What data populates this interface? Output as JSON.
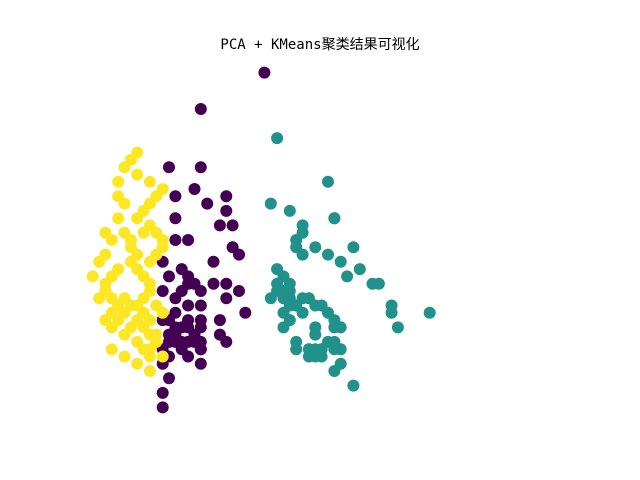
{
  "chart_data": {
    "type": "scatter",
    "title": "PCA + KMeans聚类结果可视化",
    "xlabel": "",
    "ylabel": "",
    "axes_visible": false,
    "grid": false,
    "legend": "none",
    "xlim": [
      -2.9,
      4.9
    ],
    "ylim": [
      -2.3,
      2.7
    ],
    "series": [
      {
        "color": "#440154",
        "points": [
          [
            0.0,
            2.5
          ],
          [
            -1.0,
            2.0
          ],
          [
            -1.5,
            1.2
          ],
          [
            -1.0,
            1.2
          ],
          [
            -1.1,
            0.9
          ],
          [
            -1.4,
            0.8
          ],
          [
            -0.9,
            0.7
          ],
          [
            -0.6,
            0.8
          ],
          [
            -0.6,
            0.6
          ],
          [
            -1.4,
            0.5
          ],
          [
            -0.7,
            0.4
          ],
          [
            -0.5,
            0.4
          ],
          [
            -1.2,
            0.2
          ],
          [
            -1.4,
            0.2
          ],
          [
            -0.5,
            0.1
          ],
          [
            -0.4,
            0.0
          ],
          [
            -0.8,
            -0.1
          ],
          [
            -1.6,
            -0.1
          ],
          [
            -1.3,
            -0.2
          ],
          [
            -1.2,
            -0.3
          ],
          [
            -1.5,
            -0.3
          ],
          [
            -1.1,
            -0.4
          ],
          [
            -0.8,
            -0.4
          ],
          [
            -1.2,
            -0.4
          ],
          [
            -0.6,
            -0.4
          ],
          [
            -0.4,
            -0.5
          ],
          [
            -1.6,
            -0.5
          ],
          [
            -1.3,
            -0.5
          ],
          [
            -1.0,
            -0.5
          ],
          [
            -0.6,
            -0.6
          ],
          [
            -1.4,
            -0.6
          ],
          [
            -1.2,
            -0.7
          ],
          [
            -1.0,
            -0.7
          ],
          [
            -1.4,
            -0.8
          ],
          [
            -0.3,
            -0.8
          ],
          [
            -1.2,
            -0.9
          ],
          [
            -1.5,
            -0.9
          ],
          [
            -1.6,
            -0.9
          ],
          [
            -1.0,
            -0.9
          ],
          [
            -0.7,
            -0.9
          ],
          [
            -1.2,
            -1.0
          ],
          [
            -1.0,
            -1.0
          ],
          [
            -1.4,
            -1.0
          ],
          [
            -1.1,
            -1.1
          ],
          [
            -0.7,
            -1.1
          ],
          [
            -1.4,
            -1.1
          ],
          [
            -1.3,
            -1.0
          ],
          [
            -1.5,
            -1.1
          ],
          [
            -1.2,
            -1.2
          ],
          [
            -1.0,
            -1.2
          ],
          [
            -0.6,
            -1.2
          ],
          [
            -1.4,
            -1.2
          ],
          [
            -1.3,
            -1.2
          ],
          [
            -1.5,
            -1.2
          ],
          [
            -1.1,
            -1.2
          ],
          [
            -1.0,
            -1.3
          ],
          [
            -1.3,
            -1.3
          ],
          [
            -1.5,
            -1.4
          ],
          [
            -1.2,
            -1.4
          ],
          [
            -1.5,
            -1.7
          ],
          [
            -1.0,
            -1.3
          ],
          [
            -1.6,
            -1.3
          ],
          [
            -1.6,
            -1.5
          ],
          [
            -1.0,
            -1.5
          ],
          [
            -1.6,
            -1.9
          ],
          [
            -1.6,
            -2.1
          ]
        ]
      },
      {
        "color": "#21918c",
        "points": [
          [
            0.2,
            1.6
          ],
          [
            1.0,
            1.0
          ],
          [
            0.1,
            0.7
          ],
          [
            0.4,
            0.6
          ],
          [
            0.6,
            0.4
          ],
          [
            0.6,
            0.3
          ],
          [
            0.5,
            0.2
          ],
          [
            0.5,
            0.1
          ],
          [
            1.1,
            0.5
          ],
          [
            1.1,
            0.5
          ],
          [
            0.6,
            0.0
          ],
          [
            1.0,
            0.0
          ],
          [
            0.8,
            0.1
          ],
          [
            1.2,
            -0.1
          ],
          [
            1.4,
            0.1
          ],
          [
            0.2,
            -0.2
          ],
          [
            0.3,
            -0.3
          ],
          [
            0.4,
            -0.4
          ],
          [
            0.2,
            -0.4
          ],
          [
            0.2,
            -0.5
          ],
          [
            0.3,
            -0.5
          ],
          [
            0.3,
            -0.6
          ],
          [
            0.4,
            -0.5
          ],
          [
            0.4,
            -0.6
          ],
          [
            0.4,
            -0.7
          ],
          [
            0.6,
            -0.6
          ],
          [
            0.7,
            -0.6
          ],
          [
            0.5,
            -0.7
          ],
          [
            0.3,
            -0.8
          ],
          [
            0.1,
            -0.6
          ],
          [
            0.9,
            -0.7
          ],
          [
            0.8,
            -0.7
          ],
          [
            0.6,
            -0.8
          ],
          [
            0.4,
            -0.9
          ],
          [
            0.3,
            -1.0
          ],
          [
            1.0,
            -0.8
          ],
          [
            1.1,
            -0.9
          ],
          [
            0.8,
            -1.0
          ],
          [
            1.1,
            -1.0
          ],
          [
            0.5,
            -1.2
          ],
          [
            1.0,
            -1.2
          ],
          [
            0.8,
            -1.1
          ],
          [
            1.1,
            -1.2
          ],
          [
            1.1,
            -1.3
          ],
          [
            1.2,
            -1.3
          ],
          [
            0.9,
            -1.3
          ],
          [
            0.7,
            -1.3
          ],
          [
            0.9,
            -1.4
          ],
          [
            1.7,
            -0.4
          ],
          [
            1.8,
            -0.4
          ],
          [
            2.0,
            -0.7
          ],
          [
            2.0,
            -0.8
          ],
          [
            2.1,
            -1.0
          ],
          [
            2.6,
            -0.8
          ],
          [
            1.3,
            -0.3
          ],
          [
            1.5,
            -0.2
          ],
          [
            1.2,
            -1.5
          ],
          [
            1.1,
            -1.6
          ],
          [
            0.8,
            -1.4
          ],
          [
            0.7,
            -1.3
          ],
          [
            1.4,
            -1.8
          ],
          [
            0.9,
            -1.3
          ],
          [
            0.8,
            -1.3
          ],
          [
            1.2,
            -1.0
          ],
          [
            0.7,
            -1.4
          ],
          [
            0.5,
            -1.3
          ]
        ]
      },
      {
        "color": "#fde725",
        "points": [
          [
            -2.3,
            1.0
          ],
          [
            -2.3,
            0.8
          ],
          [
            -2.2,
            0.7
          ],
          [
            -2.3,
            0.5
          ],
          [
            -2.2,
            0.3
          ],
          [
            -2.1,
            0.2
          ],
          [
            -2.1,
            0.1
          ],
          [
            -2.0,
            0.0
          ],
          [
            -2.1,
            -0.1
          ],
          [
            -2.3,
            -0.2
          ],
          [
            -2.4,
            -0.3
          ],
          [
            -2.5,
            -0.4
          ],
          [
            -2.5,
            -0.5
          ],
          [
            -2.4,
            -0.6
          ],
          [
            -2.3,
            -0.7
          ],
          [
            -2.2,
            -0.6
          ],
          [
            -2.1,
            -0.7
          ],
          [
            -2.0,
            -0.7
          ],
          [
            -1.9,
            -0.6
          ],
          [
            -1.8,
            -0.5
          ],
          [
            -1.8,
            -0.4
          ],
          [
            -1.9,
            -0.3
          ],
          [
            -2.0,
            -0.2
          ],
          [
            -1.8,
            -0.1
          ],
          [
            -1.7,
            0.0
          ],
          [
            -1.6,
            0.1
          ],
          [
            -1.6,
            0.2
          ],
          [
            -1.7,
            0.3
          ],
          [
            -1.8,
            0.4
          ],
          [
            -1.9,
            0.3
          ],
          [
            -2.0,
            0.5
          ],
          [
            -1.9,
            0.6
          ],
          [
            -1.8,
            0.7
          ],
          [
            -1.7,
            0.8
          ],
          [
            -1.6,
            0.9
          ],
          [
            -1.8,
            1.0
          ],
          [
            -2.0,
            1.1
          ],
          [
            -2.2,
            1.2
          ],
          [
            -2.1,
            1.3
          ],
          [
            -2.0,
            1.4
          ],
          [
            -1.9,
            -0.8
          ],
          [
            -1.8,
            -0.9
          ],
          [
            -2.0,
            -0.9
          ],
          [
            -2.2,
            -0.8
          ],
          [
            -2.4,
            -0.8
          ],
          [
            -2.3,
            -0.9
          ],
          [
            -2.1,
            -1.0
          ],
          [
            -1.9,
            -1.0
          ],
          [
            -1.8,
            -1.1
          ],
          [
            -1.7,
            -1.1
          ],
          [
            -2.0,
            -1.2
          ],
          [
            -2.2,
            -1.1
          ],
          [
            -2.4,
            -1.0
          ],
          [
            -2.5,
            -0.9
          ],
          [
            -2.6,
            -0.6
          ],
          [
            -2.7,
            -0.3
          ],
          [
            -2.6,
            -0.1
          ],
          [
            -2.5,
            0.0
          ],
          [
            -2.4,
            0.2
          ],
          [
            -2.5,
            0.3
          ],
          [
            -1.6,
            -0.8
          ],
          [
            -1.7,
            -0.7
          ],
          [
            -1.9,
            -1.3
          ],
          [
            -1.8,
            -1.4
          ],
          [
            -1.8,
            -1.3
          ],
          [
            -2.0,
            -1.5
          ],
          [
            -2.2,
            -1.4
          ],
          [
            -2.4,
            -1.3
          ],
          [
            -1.6,
            -1.4
          ],
          [
            -1.7,
            -1.2
          ],
          [
            -1.8,
            -1.6
          ]
        ]
      }
    ]
  }
}
